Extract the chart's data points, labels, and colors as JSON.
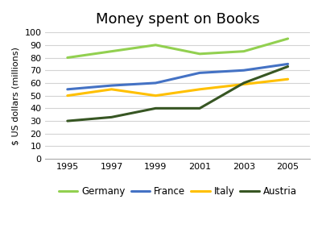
{
  "title": "Money spent on Books",
  "ylabel": "$ US dollars (millions)",
  "years": [
    1995,
    1997,
    1999,
    2001,
    2003,
    2005
  ],
  "series": {
    "Germany": [
      80,
      85,
      90,
      83,
      85,
      95
    ],
    "France": [
      55,
      58,
      60,
      68,
      70,
      75
    ],
    "Italy": [
      50,
      55,
      50,
      55,
      59,
      63
    ],
    "Austria": [
      30,
      33,
      40,
      40,
      60,
      73
    ]
  },
  "colors": {
    "Germany": "#92D050",
    "France": "#4472C4",
    "Italy": "#FFC000",
    "Austria": "#375623"
  },
  "ylim": [
    0,
    100
  ],
  "yticks": [
    0,
    10,
    20,
    30,
    40,
    50,
    60,
    70,
    80,
    90,
    100
  ],
  "background_color": "#ffffff",
  "title_fontsize": 13,
  "axis_fontsize": 8,
  "tick_fontsize": 8,
  "linewidth": 2.2
}
